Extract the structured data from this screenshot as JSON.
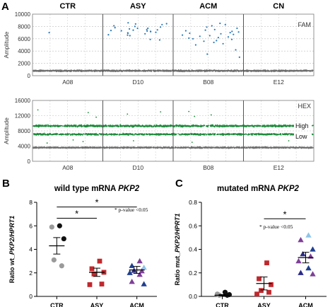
{
  "panel_letters": {
    "a": "A",
    "b": "B",
    "c": "C"
  },
  "chart_data": [
    {
      "type": "scatter",
      "panel": "A-FAM",
      "channel": "FAM",
      "ylabel": "Amplitude",
      "ylim": [
        0,
        10000
      ],
      "yticks": [
        0,
        2000,
        4000,
        6000,
        8000,
        10000
      ],
      "grid": true,
      "groups": [
        "CTR",
        "ASY",
        "ACM",
        "CN"
      ],
      "wells": [
        "A08",
        "D10",
        "B08",
        "E12"
      ],
      "negative_band": {
        "center": 800,
        "spread": 180
      },
      "positive_droplets": [
        {
          "well": "A08",
          "y": [
            7000
          ]
        },
        {
          "well": "D10",
          "y": [
            7200,
            8400,
            7700,
            7400,
            6900,
            7800,
            8100,
            7300,
            6500,
            7050,
            8600,
            7600,
            7900,
            6800,
            7450,
            8300,
            7150,
            6650,
            5800,
            7500,
            8000,
            7350,
            6950,
            7700,
            5900,
            7250,
            8450,
            6600
          ]
        },
        {
          "well": "B08",
          "y": [
            6700,
            7500,
            5600,
            8300,
            6300,
            6900,
            7700,
            5200,
            7100,
            6100,
            8500,
            6500,
            7300,
            5900,
            6800,
            7900,
            5400,
            6200,
            7400,
            5000,
            6600,
            7000,
            8100,
            6400,
            5700,
            7200,
            6000,
            4200,
            3500,
            3000
          ]
        },
        {
          "well": "E12",
          "y": []
        }
      ]
    },
    {
      "type": "scatter",
      "panel": "A-HEX",
      "channel": "HEX",
      "ylabel": "Amplitude",
      "ylim": [
        0,
        16000
      ],
      "yticks": [
        0,
        4000,
        8000,
        12000,
        16000
      ],
      "grid": true,
      "wells": [
        "A08",
        "D10",
        "B08",
        "E12"
      ],
      "band_labels": [
        "High",
        "Low"
      ],
      "bands": [
        {
          "label": "High",
          "center": 9300,
          "spread": 350
        },
        {
          "label": "Low",
          "center": 7100,
          "spread": 300
        },
        {
          "label": "",
          "center": 3600,
          "spread": 250
        }
      ],
      "sparse_droplets": [
        {
          "well": "A08",
          "y": [
            13500,
            12800,
            11600,
            5200,
            4800,
            5600
          ]
        },
        {
          "well": "D10",
          "y": [
            13000,
            12400,
            5400
          ]
        },
        {
          "well": "B08",
          "y": [
            12200,
            11800,
            13100,
            5000
          ]
        },
        {
          "well": "E12",
          "y": [
            5400
          ]
        }
      ]
    },
    {
      "type": "scatter",
      "panel": "B",
      "title_plain": "wild type mRNA ",
      "title_italic": "PKP2",
      "ylabel_prefix": "Ratio wt_",
      "ylabel_italic": "PKP2/HPRT1",
      "categories": [
        "CTR",
        "ASY",
        "ACM"
      ],
      "ylim": [
        0,
        8
      ],
      "yticks": [
        0,
        2,
        4,
        6,
        8
      ],
      "series": [
        {
          "category": "CTR",
          "mean": 4.3,
          "sem": 0.7,
          "points": [
            {
              "y": 6.0,
              "marker": "circle",
              "color": "#111111"
            },
            {
              "y": 5.9,
              "marker": "circle",
              "color": "#9a9a9a"
            },
            {
              "y": 4.9,
              "marker": "circle",
              "color": "#111111"
            },
            {
              "y": 3.1,
              "marker": "circle",
              "color": "#9a9a9a"
            },
            {
              "y": 2.6,
              "marker": "circle",
              "color": "#9a9a9a"
            }
          ]
        },
        {
          "category": "ASY",
          "mean": 2.05,
          "sem": 0.35,
          "points": [
            {
              "y": 3.0,
              "marker": "square",
              "color": "#c0282d"
            },
            {
              "y": 2.35,
              "marker": "square",
              "color": "#c0282d"
            },
            {
              "y": 2.05,
              "marker": "square",
              "color": "#c0282d"
            },
            {
              "y": 1.9,
              "marker": "square",
              "color": "#c0282d"
            },
            {
              "y": 1.05,
              "marker": "square",
              "color": "#c0282d"
            },
            {
              "y": 1.0,
              "marker": "square",
              "color": "#c0282d"
            }
          ]
        },
        {
          "category": "ACM",
          "mean": 2.25,
          "sem": 0.3,
          "points": [
            {
              "y": 3.0,
              "marker": "triangle",
              "color": "#7e3f98"
            },
            {
              "y": 2.6,
              "marker": "triangle",
              "color": "#1f3f8f"
            },
            {
              "y": 2.45,
              "marker": "triangle",
              "color": "#8fc4e8"
            },
            {
              "y": 2.2,
              "marker": "triangle",
              "color": "#2a2a8a"
            },
            {
              "y": 2.15,
              "marker": "triangle",
              "color": "#7e3f98"
            },
            {
              "y": 2.0,
              "marker": "triangle",
              "color": "#1f3f8f"
            },
            {
              "y": 1.85,
              "marker": "triangle",
              "color": "#7e3f98"
            },
            {
              "y": 1.25,
              "marker": "triangle",
              "color": "#7e3f98"
            },
            {
              "y": 1.05,
              "marker": "triangle",
              "color": "#1f3f8f"
            }
          ]
        }
      ],
      "significance": [
        {
          "from": "CTR",
          "to": "ASY",
          "y": 6.65,
          "label": "*"
        },
        {
          "from": "CTR",
          "to": "ACM",
          "y": 7.6,
          "label": "*"
        }
      ],
      "annotation": "* p-value <0.05"
    },
    {
      "type": "scatter",
      "panel": "C",
      "title_plain": "mutated mRNA ",
      "title_italic": "PKP2",
      "ylabel_prefix": "Ratio mut_",
      "ylabel_italic": "PKP2/HPRT1",
      "categories": [
        "CTR",
        "ASY",
        "ACM"
      ],
      "ylim": [
        0,
        0.8
      ],
      "yticks": [
        0.0,
        0.2,
        0.4,
        0.6,
        0.8
      ],
      "series": [
        {
          "category": "CTR",
          "mean": 0.01,
          "sem": 0.005,
          "points": [
            {
              "y": 0.035,
              "marker": "circle",
              "color": "#111111"
            },
            {
              "y": 0.02,
              "marker": "circle",
              "color": "#9a9a9a"
            },
            {
              "y": 0.015,
              "marker": "circle",
              "color": "#111111"
            },
            {
              "y": 0.01,
              "marker": "circle",
              "color": "#9a9a9a"
            },
            {
              "y": 0.01,
              "marker": "circle",
              "color": "#111111"
            }
          ]
        },
        {
          "category": "ASY",
          "mean": 0.11,
          "sem": 0.055,
          "points": [
            {
              "y": 0.285,
              "marker": "square",
              "color": "#c0282d"
            },
            {
              "y": 0.15,
              "marker": "square",
              "color": "#c0282d"
            },
            {
              "y": 0.1,
              "marker": "square",
              "color": "#c0282d"
            },
            {
              "y": 0.05,
              "marker": "square",
              "color": "#c0282d"
            },
            {
              "y": 0.035,
              "marker": "square",
              "color": "#c0282d"
            },
            {
              "y": 0.02,
              "marker": "square",
              "color": "#c0282d"
            }
          ]
        },
        {
          "category": "ACM",
          "mean": 0.33,
          "sem": 0.045,
          "points": [
            {
              "y": 0.52,
              "marker": "triangle",
              "color": "#8fc4e8"
            },
            {
              "y": 0.48,
              "marker": "triangle",
              "color": "#7e3f98"
            },
            {
              "y": 0.4,
              "marker": "triangle",
              "color": "#1f3f8f"
            },
            {
              "y": 0.36,
              "marker": "triangle",
              "color": "#2a2a8a"
            },
            {
              "y": 0.34,
              "marker": "triangle",
              "color": "#7e3f98"
            },
            {
              "y": 0.3,
              "marker": "triangle",
              "color": "#7e3f98"
            },
            {
              "y": 0.24,
              "marker": "triangle",
              "color": "#1f3f8f"
            },
            {
              "y": 0.2,
              "marker": "triangle",
              "color": "#2a2a8a"
            },
            {
              "y": 0.19,
              "marker": "triangle",
              "color": "#7e3f98"
            }
          ]
        }
      ],
      "significance": [
        {
          "from": "ASY",
          "to": "ACM",
          "y": 0.66,
          "label": "*"
        }
      ],
      "annotation": "* p-value <0.05"
    }
  ]
}
